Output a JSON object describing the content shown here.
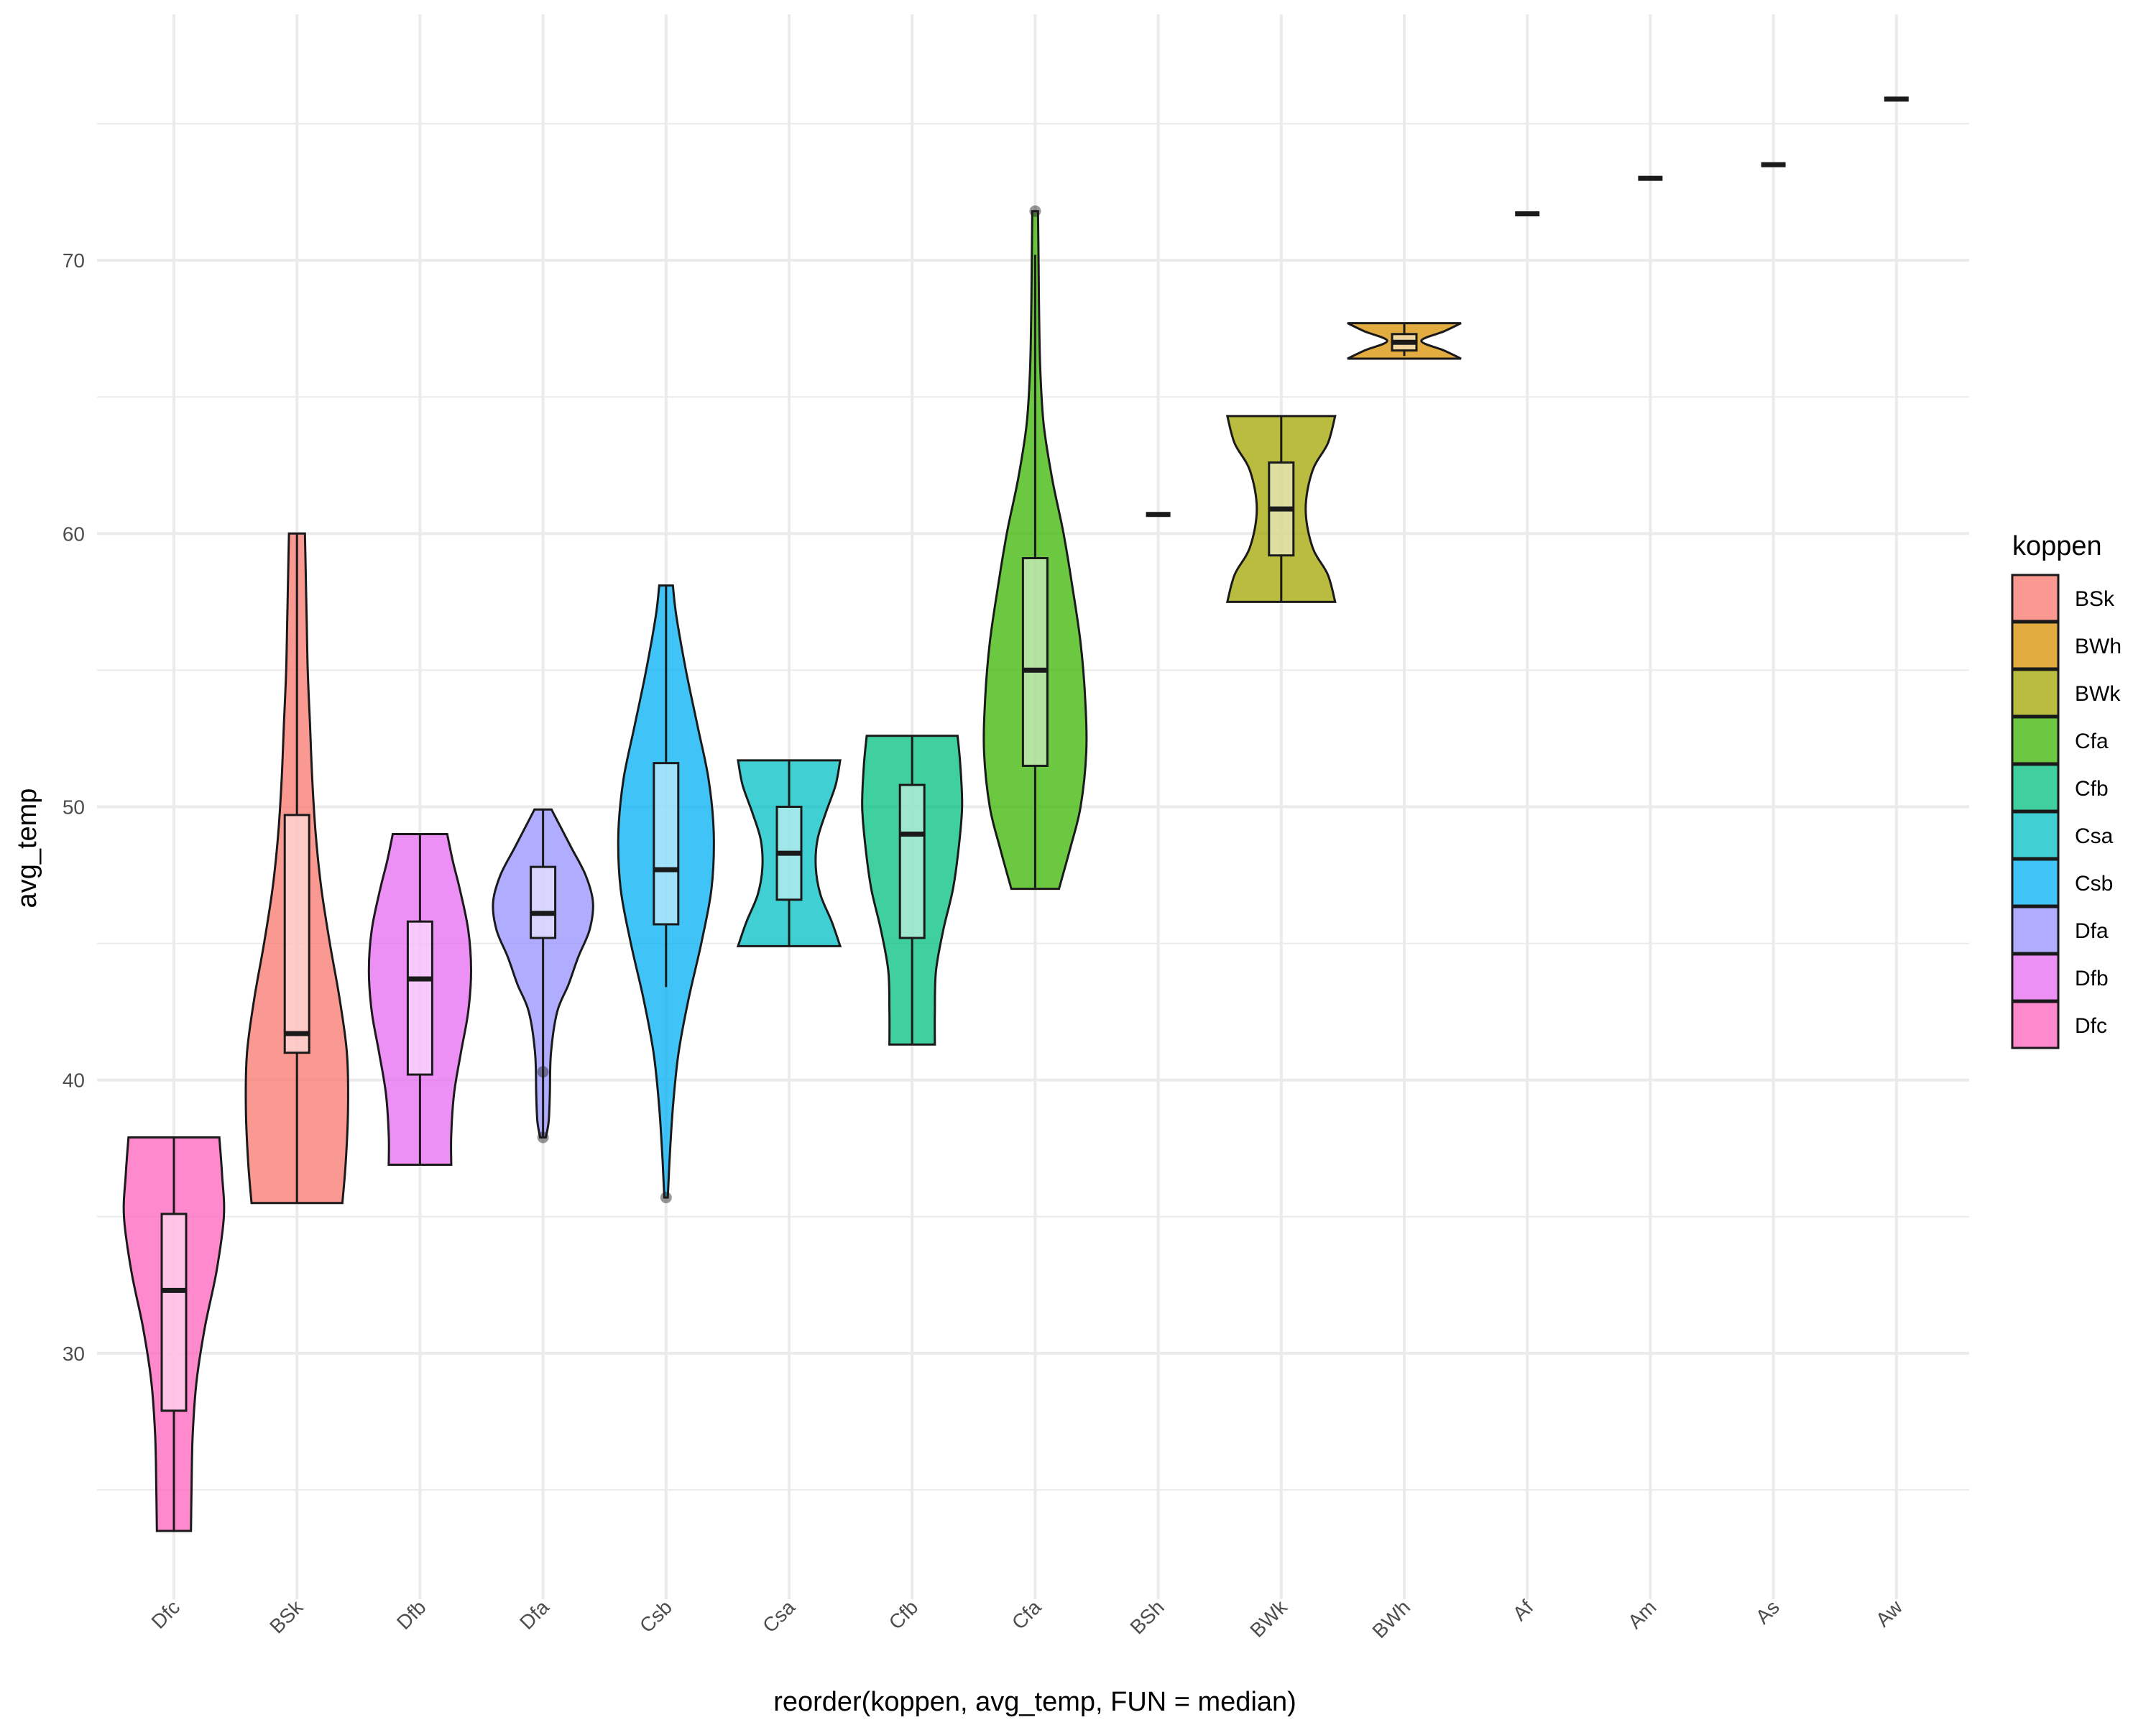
{
  "chart_data": {
    "type": "violin",
    "xlabel": "reorder(koppen, avg_temp, FUN = median)",
    "ylabel": "avg_temp",
    "ylim": [
      21,
      79
    ],
    "y_ticks": [
      30,
      40,
      50,
      60,
      70
    ],
    "grid": true,
    "legend": {
      "title": "koppen",
      "position": "right",
      "entries": [
        {
          "label": "BSk",
          "color": "#F8766D"
        },
        {
          "label": "BWh",
          "color": "#D89000"
        },
        {
          "label": "BWk",
          "color": "#A3A500"
        },
        {
          "label": "Cfa",
          "color": "#39B600"
        },
        {
          "label": "Cfb",
          "color": "#00BF7D"
        },
        {
          "label": "Csa",
          "color": "#00BFC4"
        },
        {
          "label": "Csb",
          "color": "#00B0F6"
        },
        {
          "label": "Dfa",
          "color": "#9590FF"
        },
        {
          "label": "Dfb",
          "color": "#E76BF3"
        },
        {
          "label": "Dfc",
          "color": "#FF62BC"
        }
      ]
    },
    "categories": [
      "Dfc",
      "BSk",
      "Dfb",
      "Dfa",
      "Csb",
      "Csa",
      "Cfb",
      "Cfa",
      "BSh",
      "BWk",
      "BWh",
      "Af",
      "Am",
      "As",
      "Aw"
    ],
    "groups": [
      {
        "category": "Dfc",
        "color": "#FF62BC",
        "min": 23.5,
        "q1": 27.9,
        "median": 32.3,
        "q3": 35.1,
        "max": 37.9,
        "violin": [
          [
            23.5,
            0.3
          ],
          [
            25.0,
            0.31
          ],
          [
            27.0,
            0.33
          ],
          [
            29.0,
            0.4
          ],
          [
            31.0,
            0.55
          ],
          [
            33.0,
            0.75
          ],
          [
            35.0,
            0.88
          ],
          [
            36.5,
            0.85
          ],
          [
            37.9,
            0.8
          ]
        ],
        "outliers": []
      },
      {
        "category": "BSk",
        "color": "#F8766D",
        "min": 35.5,
        "q1": 41.0,
        "median": 41.7,
        "q3": 49.7,
        "max": 60.0,
        "violin": [
          [
            35.5,
            0.8
          ],
          [
            37.0,
            0.86
          ],
          [
            39.0,
            0.9
          ],
          [
            41.0,
            0.88
          ],
          [
            43.0,
            0.75
          ],
          [
            45.0,
            0.58
          ],
          [
            47.0,
            0.43
          ],
          [
            49.0,
            0.33
          ],
          [
            51.0,
            0.27
          ],
          [
            53.0,
            0.23
          ],
          [
            55.0,
            0.19
          ],
          [
            57.0,
            0.17
          ],
          [
            59.0,
            0.15
          ],
          [
            60.0,
            0.14
          ]
        ],
        "outliers": []
      },
      {
        "category": "Dfb",
        "color": "#E76BF3",
        "min": 36.9,
        "q1": 40.2,
        "median": 43.7,
        "q3": 45.8,
        "max": 49.0,
        "violin": [
          [
            36.9,
            0.55
          ],
          [
            38.0,
            0.55
          ],
          [
            39.5,
            0.6
          ],
          [
            41.0,
            0.72
          ],
          [
            42.5,
            0.85
          ],
          [
            44.0,
            0.9
          ],
          [
            45.5,
            0.85
          ],
          [
            47.0,
            0.7
          ],
          [
            48.0,
            0.58
          ],
          [
            49.0,
            0.48
          ]
        ],
        "outliers": []
      },
      {
        "category": "Dfa",
        "color": "#9590FF",
        "min": 37.9,
        "q1": 45.2,
        "median": 46.1,
        "q3": 47.8,
        "max": 49.9,
        "violin": [
          [
            37.9,
            0.05
          ],
          [
            38.5,
            0.1
          ],
          [
            39.5,
            0.12
          ],
          [
            41.0,
            0.14
          ],
          [
            42.5,
            0.25
          ],
          [
            43.5,
            0.45
          ],
          [
            44.5,
            0.62
          ],
          [
            45.5,
            0.82
          ],
          [
            46.5,
            0.88
          ],
          [
            47.5,
            0.75
          ],
          [
            48.5,
            0.5
          ],
          [
            49.3,
            0.3
          ],
          [
            49.9,
            0.15
          ]
        ],
        "outliers": [
          40.3,
          37.9
        ]
      },
      {
        "category": "Csb",
        "color": "#00B0F6",
        "min": 43.4,
        "q1": 45.7,
        "median": 47.7,
        "q3": 51.6,
        "max": 58.1,
        "violin": [
          [
            35.7,
            0.03
          ],
          [
            37.0,
            0.06
          ],
          [
            39.0,
            0.12
          ],
          [
            41.0,
            0.22
          ],
          [
            43.0,
            0.4
          ],
          [
            45.0,
            0.62
          ],
          [
            47.0,
            0.8
          ],
          [
            49.0,
            0.84
          ],
          [
            51.0,
            0.75
          ],
          [
            53.0,
            0.55
          ],
          [
            55.0,
            0.35
          ],
          [
            57.0,
            0.18
          ],
          [
            58.1,
            0.12
          ]
        ],
        "outliers": [
          35.7
        ]
      },
      {
        "category": "Csa",
        "color": "#00BFC4",
        "min": 44.9,
        "q1": 46.6,
        "median": 48.3,
        "q3": 50.0,
        "max": 51.7,
        "violin": [
          [
            44.9,
            0.9
          ],
          [
            45.8,
            0.75
          ],
          [
            46.8,
            0.55
          ],
          [
            47.8,
            0.47
          ],
          [
            48.8,
            0.5
          ],
          [
            49.8,
            0.65
          ],
          [
            50.8,
            0.82
          ],
          [
            51.7,
            0.9
          ]
        ],
        "outliers": []
      },
      {
        "category": "Cfb",
        "color": "#00BF7D",
        "min": 41.3,
        "q1": 45.2,
        "median": 49.0,
        "q3": 50.8,
        "max": 52.6,
        "violin": [
          [
            41.3,
            0.4
          ],
          [
            42.5,
            0.4
          ],
          [
            44.0,
            0.42
          ],
          [
            45.5,
            0.55
          ],
          [
            47.0,
            0.72
          ],
          [
            48.5,
            0.82
          ],
          [
            50.0,
            0.88
          ],
          [
            51.5,
            0.85
          ],
          [
            52.6,
            0.8
          ]
        ],
        "outliers": []
      },
      {
        "category": "Cfa",
        "color": "#39B600",
        "min": 47.0,
        "q1": 51.5,
        "median": 55.0,
        "q3": 59.1,
        "max": 70.2,
        "violin": [
          [
            47.0,
            0.42
          ],
          [
            48.5,
            0.62
          ],
          [
            50.0,
            0.8
          ],
          [
            52.0,
            0.9
          ],
          [
            54.0,
            0.88
          ],
          [
            56.0,
            0.8
          ],
          [
            58.0,
            0.66
          ],
          [
            60.0,
            0.5
          ],
          [
            62.0,
            0.3
          ],
          [
            64.0,
            0.15
          ],
          [
            66.0,
            0.09
          ],
          [
            68.0,
            0.07
          ],
          [
            70.0,
            0.06
          ],
          [
            71.8,
            0.05
          ]
        ],
        "outliers": [
          71.8
        ]
      },
      {
        "category": "BSh",
        "color": "#A3A500",
        "min": 60.7,
        "q1": 60.7,
        "median": 60.7,
        "q3": 60.7,
        "max": 60.7,
        "violin": [],
        "outliers": []
      },
      {
        "category": "BWk",
        "color": "#A3A500",
        "min": 57.5,
        "q1": 59.2,
        "median": 60.9,
        "q3": 62.6,
        "max": 64.3,
        "violin": [
          [
            57.5,
            0.95
          ],
          [
            58.5,
            0.82
          ],
          [
            59.5,
            0.55
          ],
          [
            60.9,
            0.43
          ],
          [
            62.3,
            0.55
          ],
          [
            63.3,
            0.82
          ],
          [
            64.3,
            0.95
          ]
        ],
        "outliers": []
      },
      {
        "category": "BWh",
        "color": "#D89000",
        "min": 66.5,
        "q1": 66.7,
        "median": 67.0,
        "q3": 67.3,
        "max": 67.7,
        "violin": [
          [
            66.4,
            1.0
          ],
          [
            66.7,
            0.7
          ],
          [
            67.05,
            0.3
          ],
          [
            67.4,
            0.7
          ],
          [
            67.7,
            1.0
          ]
        ],
        "outliers": []
      },
      {
        "category": "Af",
        "color": "#F8766D",
        "min": 71.7,
        "q1": 71.7,
        "median": 71.7,
        "q3": 71.7,
        "max": 71.7,
        "violin": [],
        "outliers": []
      },
      {
        "category": "Am",
        "color": "#F8766D",
        "min": 73.0,
        "q1": 73.0,
        "median": 73.0,
        "q3": 73.0,
        "max": 73.0,
        "violin": [],
        "outliers": []
      },
      {
        "category": "As",
        "color": "#F8766D",
        "min": 73.5,
        "q1": 73.5,
        "median": 73.5,
        "q3": 73.5,
        "max": 73.5,
        "violin": [],
        "outliers": []
      },
      {
        "category": "Aw",
        "color": "#F8766D",
        "min": 75.9,
        "q1": 75.9,
        "median": 75.9,
        "q3": 75.9,
        "max": 75.9,
        "violin": [],
        "outliers": []
      }
    ]
  }
}
